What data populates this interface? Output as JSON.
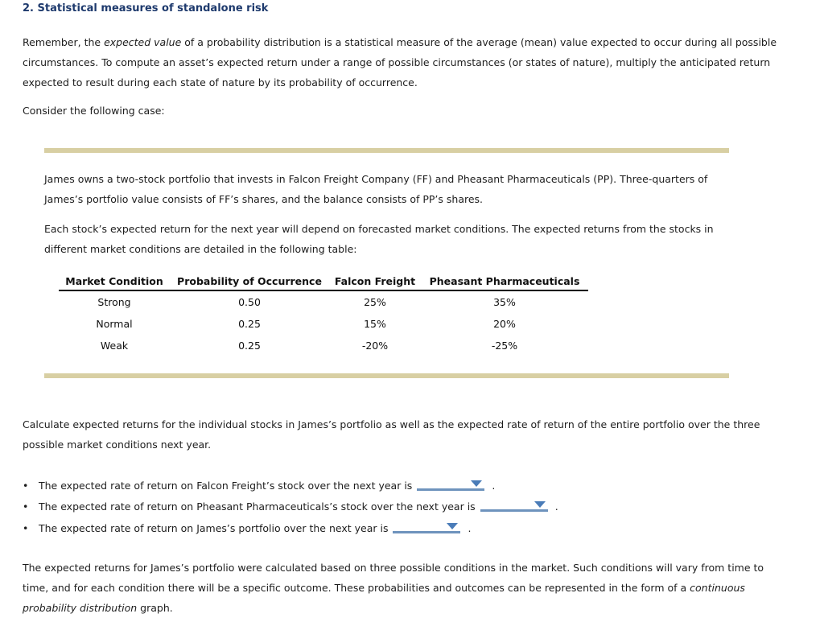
{
  "colors": {
    "title_text": "#1e3a6d",
    "body_text": "#1d1d1d",
    "section_accent_bar": "#d8cfa3",
    "dropdown_line": "#6e93bd",
    "dropdown_caret": "#4a7cb8"
  },
  "title": "2. Statistical measures of standalone risk",
  "intro": {
    "line1_pre": "Remember, the ",
    "line1_italic": "expected value",
    "line1_post": " of a probability distribution is a statistical measure of the average (mean) value expected to occur during all possible",
    "line2": "circumstances. To compute an asset’s expected return under a range of possible circumstances (or states of nature), multiply the anticipated return",
    "line3": "expected to result during each state of nature by its probability of occurrence.",
    "consider": "Consider the following case:"
  },
  "case_box": {
    "para1_line1": "James owns a two-stock portfolio that invests in Falcon Freight Company (FF) and Pheasant Pharmaceuticals (PP). Three-quarters of",
    "para1_line2": "James’s portfolio value consists of FF’s shares, and the balance consists of PP’s shares.",
    "para2_line1": "Each stock’s expected return for the next year will depend on forecasted market conditions. The expected returns from the stocks in",
    "para2_line2": "different market conditions are detailed in the following table:",
    "table": {
      "headers": [
        "Market Condition",
        "Probability of Occurrence",
        "Falcon Freight",
        "Pheasant Pharmaceuticals"
      ],
      "rows": [
        {
          "condition": "Strong",
          "probability": "0.50",
          "falcon_freight": "25%",
          "pheasant_pharma": "35%"
        },
        {
          "condition": "Normal",
          "probability": "0.25",
          "falcon_freight": "15%",
          "pheasant_pharma": "20%"
        },
        {
          "condition": "Weak",
          "probability": "0.25",
          "falcon_freight": "-20%",
          "pheasant_pharma": "-25%"
        }
      ]
    }
  },
  "instructions": {
    "line1": "Calculate expected returns for the individual stocks in James’s portfolio as well as the expected rate of return of the entire portfolio over the three",
    "line2": "possible market conditions next year."
  },
  "questions": [
    {
      "text": "The expected rate of return on Falcon Freight’s stock over the next year is",
      "dropdown_value": "",
      "suffix": "."
    },
    {
      "text": "The expected rate of return on Pheasant Pharmaceuticals’s stock over the next year is",
      "dropdown_value": "",
      "suffix": "."
    },
    {
      "text": "The expected rate of return on James’s portfolio over the next year is",
      "dropdown_value": "",
      "suffix": "."
    }
  ],
  "closing": {
    "line1": "The expected returns for James’s portfolio were calculated based on three possible conditions in the market. Such conditions will vary from time to",
    "line2_pre": "time, and for each condition there will be a specific outcome. These probabilities and outcomes can be represented in the form of a ",
    "line2_italic": "continuous",
    "line3_italic": "probability distribution",
    "line3_post": " graph."
  }
}
